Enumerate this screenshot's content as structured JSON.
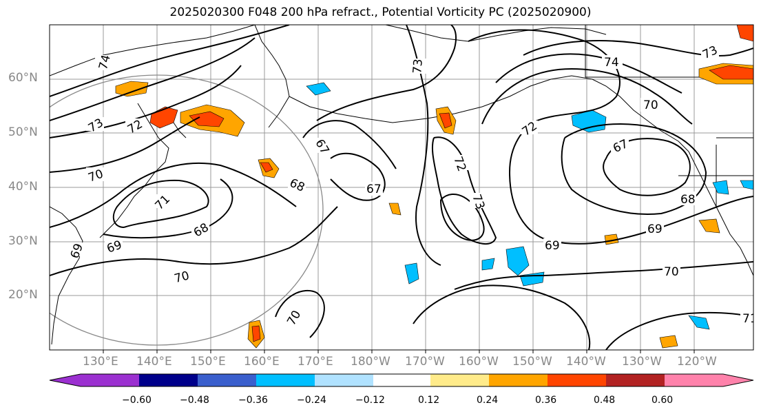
{
  "title": "2025020300 F048 200 hPa refract., Potential Vorticity PC (2025020900)",
  "latitude_labels": [
    "60°N",
    "50°N",
    "40°N",
    "30°N",
    "20°N"
  ],
  "longitude_labels": [
    "130°E",
    "140°E",
    "150°E",
    "160°E",
    "170°E",
    "180°W",
    "170°W",
    "160°W",
    "150°W",
    "140°W",
    "130°W",
    "120°W"
  ],
  "contour_labels": [
    "74",
    "73",
    "72",
    "71",
    "70",
    "69",
    "68",
    "67",
    "68",
    "69",
    "70",
    "73",
    "72",
    "74",
    "70",
    "67",
    "68",
    "69",
    "70",
    "69",
    "72",
    "73",
    "67",
    "68",
    "69",
    "70",
    "70",
    "71",
    "73"
  ],
  "colorbar": {
    "tick_labels": [
      "−0.60",
      "−0.48",
      "−0.36",
      "−0.24",
      "−0.12",
      "0.12",
      "0.24",
      "0.36",
      "0.48",
      "0.60"
    ],
    "colors": [
      "#9b30d0",
      "#00008b",
      "#3a5fcd",
      "#00bfff",
      "#b0e2ff",
      "#ffffff",
      "#ffeb8a",
      "#ffa500",
      "#ff4500",
      "#b22222",
      "#ff82ab"
    ]
  },
  "anomaly_colors": {
    "positive_weak": "#ffa500",
    "positive_strong": "#ff4500",
    "negative": "#00bfff",
    "contour": "#000000",
    "grid": "#999999"
  }
}
